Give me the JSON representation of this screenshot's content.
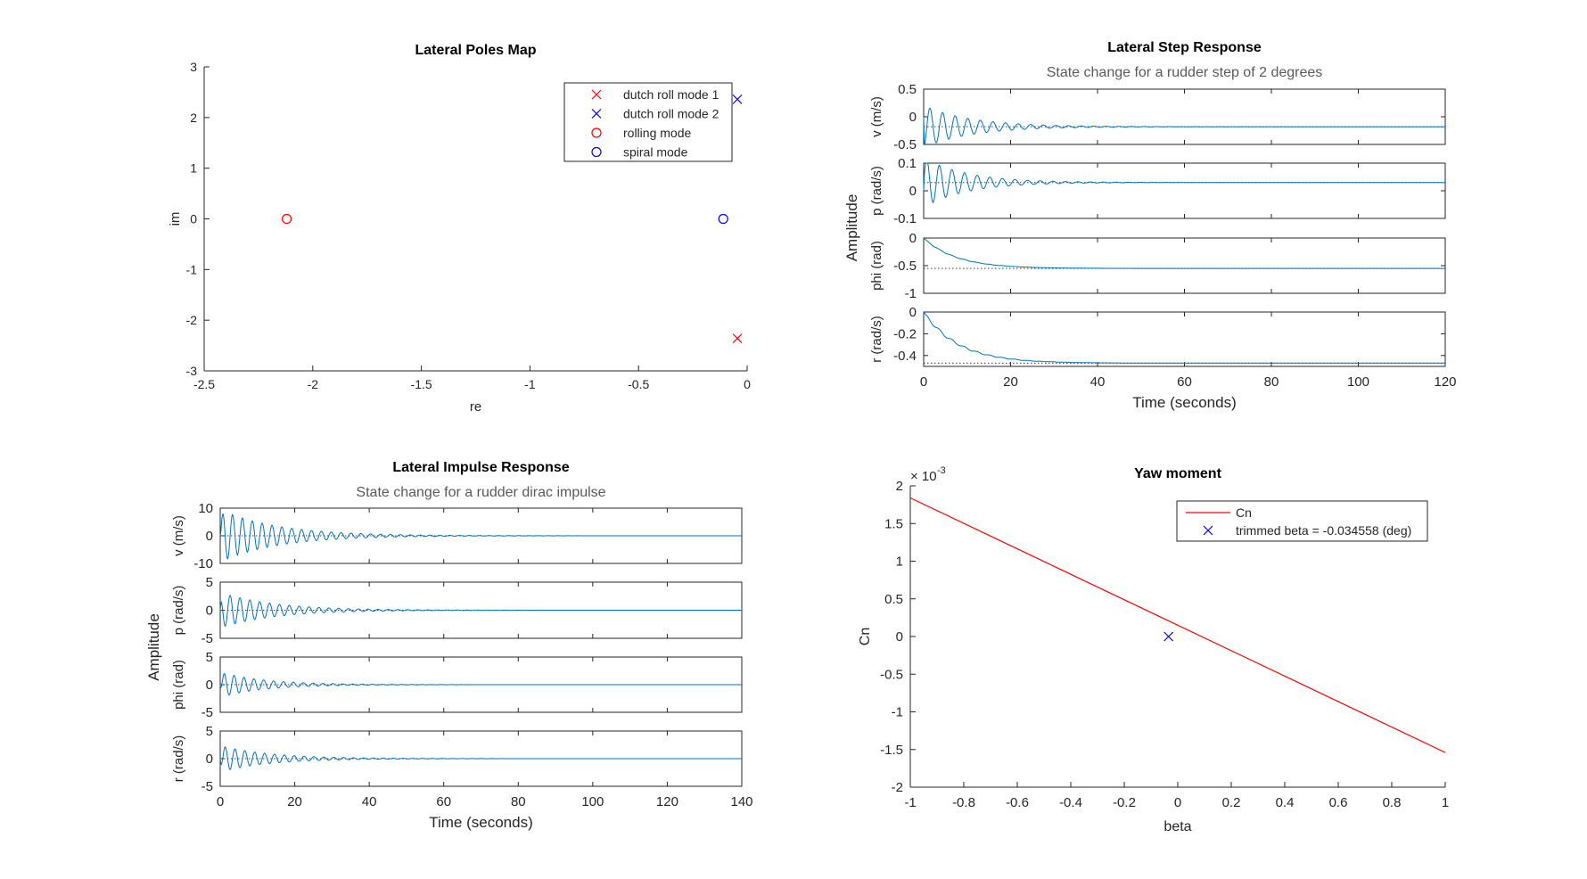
{
  "colors": {
    "axis": "#262626",
    "series": "#0072BD",
    "red": "#FF0000",
    "blue": "#0000FF",
    "title": "#000000",
    "subtitle": "#5a5a5a",
    "dotted": "#404040"
  },
  "chart_data": [
    {
      "id": "poles",
      "type": "scatter",
      "title": "Lateral Poles Map",
      "xlabel": "re",
      "ylabel": "im",
      "xlim": [
        -2.5,
        0
      ],
      "ylim": [
        -3,
        3
      ],
      "xticks": [
        -2.5,
        -2,
        -1.5,
        -1,
        -0.5,
        0
      ],
      "xtick_labels": [
        "-2.5",
        "-2",
        "-1.5",
        "-1",
        "-0.5",
        "0"
      ],
      "yticks": [
        -3,
        -2,
        -1,
        0,
        1,
        2,
        3
      ],
      "ytick_labels": [
        "-3",
        "-2",
        "-1",
        "0",
        "1",
        "2",
        "3"
      ],
      "legend_position": "top-right",
      "series": [
        {
          "name": "dutch roll mode 1",
          "marker": "x",
          "color": "#FF0000",
          "points": [
            [
              -0.045,
              -2.36
            ]
          ]
        },
        {
          "name": "dutch roll mode 2",
          "marker": "x",
          "color": "#0000FF",
          "points": [
            [
              -0.045,
              2.36
            ]
          ]
        },
        {
          "name": "rolling mode",
          "marker": "o",
          "color": "#FF0000",
          "points": [
            [
              -2.12,
              0
            ]
          ]
        },
        {
          "name": "spiral mode",
          "marker": "o",
          "color": "#0000FF",
          "points": [
            [
              -0.11,
              0
            ]
          ]
        }
      ]
    },
    {
      "id": "step",
      "type": "line",
      "title": "Lateral Step Response",
      "subtitle": "State change for a rudder step of 2 degrees",
      "xlabel": "Time (seconds)",
      "ylabel": "Amplitude",
      "xlim": [
        0,
        120
      ],
      "xticks": [
        0,
        20,
        40,
        60,
        80,
        100,
        120
      ],
      "xtick_labels": [
        "0",
        "20",
        "40",
        "60",
        "80",
        "100",
        "120"
      ],
      "signal": "step",
      "subplots": [
        {
          "label": "v (m/s)",
          "ylim": [
            -0.5,
            0.5
          ],
          "yticks": [
            -0.5,
            0,
            0.5
          ],
          "ytick_labels": [
            "-0.5",
            "0",
            "0.5"
          ],
          "final": -0.18,
          "amp": 0.38,
          "decay": 0.09,
          "period": 2.9,
          "phase": -1.57,
          "tau": 0
        },
        {
          "label": "p (rad/s)",
          "ylim": [
            -0.1,
            0.1
          ],
          "yticks": [
            -0.1,
            0,
            0.1
          ],
          "ytick_labels": [
            "-0.1",
            "0",
            "0.1"
          ],
          "final": 0.03,
          "amp": 0.09,
          "decay": 0.1,
          "period": 2.9,
          "phase": 0,
          "tau": 0
        },
        {
          "label": "phi (rad)",
          "ylim": [
            -1,
            0
          ],
          "yticks": [
            -1,
            -0.5,
            0
          ],
          "ytick_labels": [
            "-1",
            "-0.5",
            "0"
          ],
          "final": -0.55,
          "amp": 0.012,
          "decay": 0.1,
          "period": 2.9,
          "phase": 0,
          "tau": 7.5
        },
        {
          "label": "r (rad/s)",
          "ylim": [
            -0.5,
            0
          ],
          "yticks": [
            -0.4,
            -0.2,
            0
          ],
          "ytick_labels": [
            "-0.4",
            "-0.2",
            "0"
          ],
          "final": -0.47,
          "amp": 0.02,
          "decay": 0.1,
          "period": 2.9,
          "phase": 0,
          "tau": 8
        }
      ]
    },
    {
      "id": "impulse",
      "type": "line",
      "title": "Lateral Impulse Response",
      "subtitle": "State change for a rudder dirac impulse",
      "xlabel": "Time (seconds)",
      "ylabel": "Amplitude",
      "xlim": [
        0,
        140
      ],
      "xticks": [
        0,
        20,
        40,
        60,
        80,
        100,
        120,
        140
      ],
      "xtick_labels": [
        "0",
        "20",
        "40",
        "60",
        "80",
        "100",
        "120",
        "140"
      ],
      "signal": "impulse",
      "subplots": [
        {
          "label": "v (m/s)",
          "ylim": [
            -10,
            10
          ],
          "yticks": [
            -10,
            0,
            10
          ],
          "ytick_labels": [
            "-10",
            "0",
            "10"
          ],
          "final": 0,
          "amp": 9.5,
          "decay": 0.065,
          "period": 2.65,
          "phase": 0
        },
        {
          "label": "p (rad/s)",
          "ylim": [
            -5,
            5
          ],
          "yticks": [
            -5,
            0,
            5
          ],
          "ytick_labels": [
            "-5",
            "0",
            "5"
          ],
          "final": 0,
          "amp": 3.2,
          "decay": 0.07,
          "period": 2.65,
          "phase": 1.57
        },
        {
          "label": "phi (rad)",
          "ylim": [
            -5,
            5
          ],
          "yticks": [
            -5,
            0,
            5
          ],
          "ytick_labels": [
            "-5",
            "0",
            "5"
          ],
          "final": 0,
          "amp": 2.3,
          "decay": 0.085,
          "period": 2.65,
          "phase": -1.0
        },
        {
          "label": "r (rad/s)",
          "ylim": [
            -5,
            5
          ],
          "yticks": [
            -5,
            0,
            5
          ],
          "ytick_labels": [
            "-5",
            "0",
            "5"
          ],
          "final": 0,
          "amp": 2.4,
          "decay": 0.075,
          "period": 2.65,
          "phase": -1.57
        }
      ]
    },
    {
      "id": "yaw",
      "type": "line",
      "title": "Yaw moment",
      "xlabel": "beta",
      "ylabel": "Cn",
      "y_exponent": "× 10",
      "y_exponent_power": "-3",
      "xlim": [
        -1,
        1
      ],
      "ylim": [
        -2,
        2
      ],
      "xticks": [
        -1,
        -0.8,
        -0.6,
        -0.4,
        -0.2,
        0,
        0.2,
        0.4,
        0.6,
        0.8,
        1
      ],
      "xtick_labels": [
        "-1",
        "-0.8",
        "-0.6",
        "-0.4",
        "-0.2",
        "0",
        "0.2",
        "0.4",
        "0.6",
        "0.8",
        "1"
      ],
      "yticks": [
        -2,
        -1.5,
        -1,
        -0.5,
        0,
        0.5,
        1,
        1.5,
        2
      ],
      "ytick_labels": [
        "-2",
        "-1.5",
        "-1",
        "-0.5",
        "0",
        "0.5",
        "1",
        "1.5",
        "2"
      ],
      "legend_position": "top-right",
      "series": [
        {
          "name": "Cn",
          "kind": "line",
          "color": "#FF0000",
          "x": [
            -1,
            1
          ],
          "y": [
            1.84,
            -1.54
          ]
        },
        {
          "name": "trimmed beta = -0.034558 (deg)",
          "kind": "marker",
          "marker": "x",
          "color": "#0000FF",
          "x": [
            -0.034558
          ],
          "y": [
            0
          ]
        }
      ]
    }
  ]
}
